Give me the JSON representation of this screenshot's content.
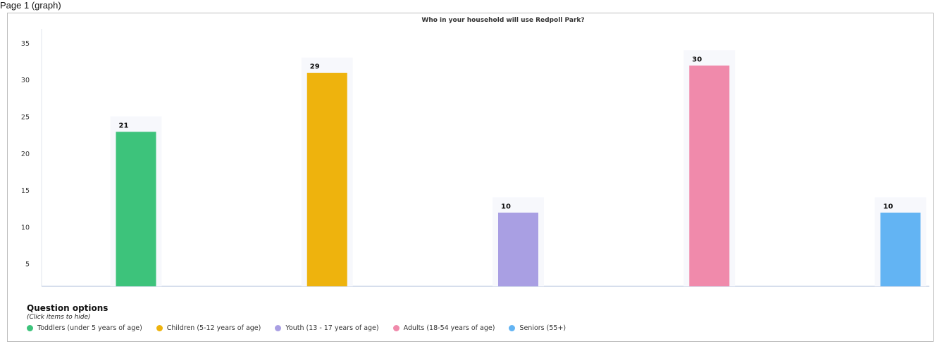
{
  "page": {
    "top_label": "Page 1 (graph)"
  },
  "chart_data": {
    "type": "bar",
    "title": "Who in your household will use Redpoll Park?",
    "categories": [
      "Toddlers (under 5 years of age)",
      "Children (5-12 years of age)",
      "Youth (13 - 17 years of age)",
      "Adults (18-54 years of age)",
      "Seniors (55+)"
    ],
    "values": [
      21,
      29,
      10,
      30,
      10
    ],
    "colors": [
      "#3dc37b",
      "#eeb30d",
      "#a99fe3",
      "#f08aab",
      "#63b4f3"
    ],
    "ylim": [
      2,
      37
    ],
    "yticks": [
      5,
      10,
      15,
      20,
      25,
      30,
      35
    ],
    "xlabel": "",
    "ylabel": "",
    "grid": false,
    "legend_position": "bottom-left"
  },
  "legend": {
    "title": "Question options",
    "hint": "(Click items to hide)",
    "items": [
      "Toddlers (under 5 years of age)",
      "Children (5-12 years of age)",
      "Youth (13 - 17 years of age)",
      "Adults (18-54 years of age)",
      "Seniors (55+)"
    ]
  }
}
